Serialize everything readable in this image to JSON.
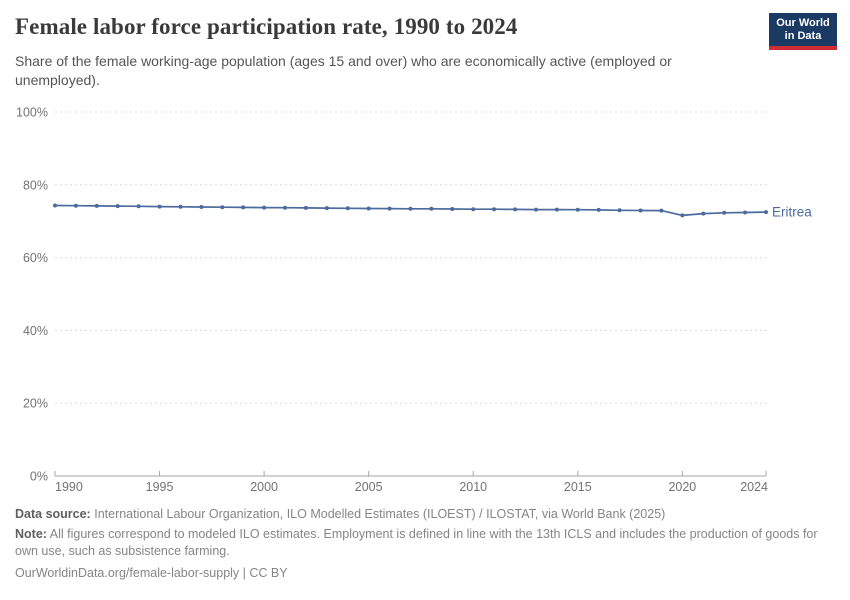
{
  "header": {
    "title": "Female labor force participation rate, 1990 to 2024",
    "subtitle": "Share of the female working-age population (ages 15 and over) who are economically active (employed or unemployed).",
    "logo": {
      "line1": "Our World",
      "line2": "in Data"
    }
  },
  "chart_data": {
    "type": "line",
    "title": "Female labor force participation rate, 1990 to 2024",
    "xlabel": "",
    "ylabel": "",
    "ylim": [
      0,
      100
    ],
    "yticks": [
      0,
      20,
      40,
      60,
      80,
      100
    ],
    "ytick_suffix": "%",
    "xticks": [
      1990,
      1995,
      2000,
      2005,
      2010,
      2015,
      2020,
      2024
    ],
    "grid": "horizontal-dashed",
    "legend_position": "line-end-label",
    "series": [
      {
        "name": "Eritrea",
        "color": "#4c6a9c",
        "x": [
          1990,
          1991,
          1992,
          1993,
          1994,
          1995,
          1996,
          1997,
          1998,
          1999,
          2000,
          2001,
          2002,
          2003,
          2004,
          2005,
          2006,
          2007,
          2008,
          2009,
          2010,
          2011,
          2012,
          2013,
          2014,
          2015,
          2016,
          2017,
          2018,
          2019,
          2020,
          2021,
          2022,
          2023,
          2024
        ],
        "values": [
          74.3,
          74.25,
          74.2,
          74.15,
          74.1,
          74.0,
          73.95,
          73.9,
          73.85,
          73.8,
          73.75,
          73.7,
          73.65,
          73.6,
          73.55,
          73.5,
          73.45,
          73.4,
          73.4,
          73.35,
          73.3,
          73.3,
          73.25,
          73.2,
          73.2,
          73.15,
          73.1,
          73.0,
          72.95,
          72.9,
          71.6,
          72.1,
          72.3,
          72.4,
          72.5
        ]
      }
    ]
  },
  "footer": {
    "data_source_label": "Data source:",
    "data_source_text": "International Labour Organization, ILO Modelled Estimates (ILOEST) / ILOSTAT, via World Bank (2025)",
    "note_label": "Note:",
    "note_text": "All figures correspond to modeled ILO estimates. Employment is defined in line with the 13th ICLS and includes the production of goods for own use, such as subsistence farming.",
    "citation": "OurWorldinData.org/female-labor-supply | CC BY"
  },
  "colors": {
    "line": "#4c6a9c",
    "gridline": "#dcdcdc",
    "axis": "#a5a5a5",
    "tick_label": "#737373",
    "logo_navy": "#1a3a63",
    "logo_red": "#d12b35"
  }
}
